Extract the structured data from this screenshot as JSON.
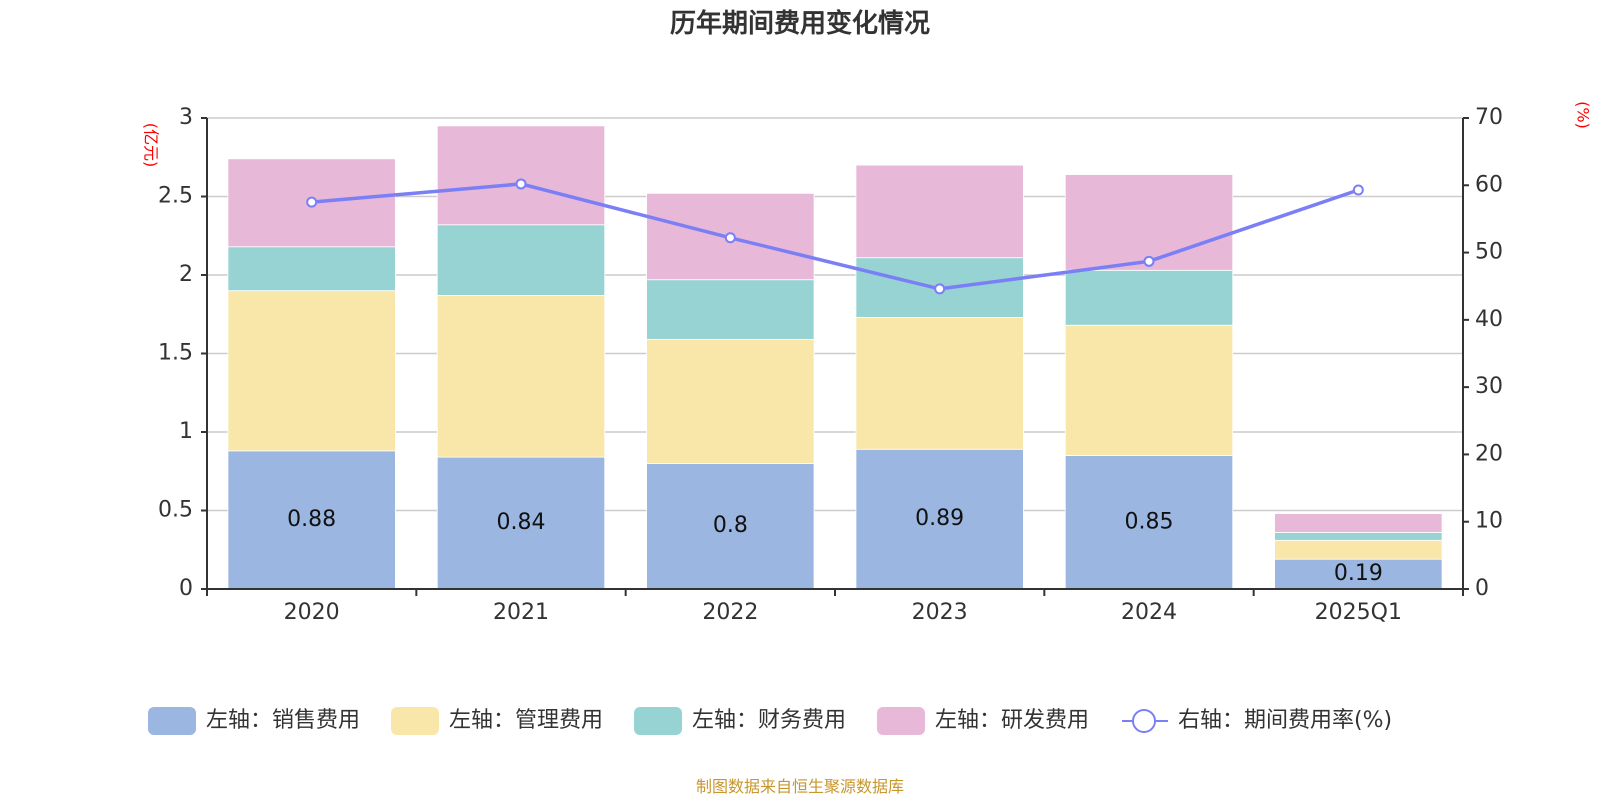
{
  "chart_data": {
    "type": "bar",
    "title": "历年期间费用变化情况",
    "categories": [
      "2020",
      "2021",
      "2022",
      "2023",
      "2024",
      "2025Q1"
    ],
    "stacked": true,
    "left_axis": {
      "unit_label": "(亿元)",
      "ylim": [
        0,
        3
      ],
      "ticks": [
        "0",
        "0.5",
        "1",
        "1.5",
        "2",
        "2.5",
        "3"
      ]
    },
    "right_axis": {
      "unit_label": "(%)",
      "ylim": [
        0,
        70
      ],
      "ticks": [
        "0",
        "10",
        "20",
        "30",
        "40",
        "50",
        "60",
        "70"
      ]
    },
    "grid": true,
    "legend_position": "bottom",
    "series": [
      {
        "name": "左轴：销售费用",
        "axis": "left",
        "type": "bar",
        "color": "#9bb7e1",
        "values": [
          0.88,
          0.84,
          0.8,
          0.89,
          0.85,
          0.19
        ],
        "data_labels": [
          "0.88",
          "0.84",
          "0.8",
          "0.89",
          "0.85",
          "0.19"
        ]
      },
      {
        "name": "左轴：管理费用",
        "axis": "left",
        "type": "bar",
        "color": "#f8e7a9",
        "values": [
          1.02,
          1.03,
          0.79,
          0.84,
          0.83,
          0.12
        ]
      },
      {
        "name": "左轴：财务费用",
        "axis": "left",
        "type": "bar",
        "color": "#97d3d3",
        "values": [
          0.28,
          0.45,
          0.38,
          0.38,
          0.35,
          0.05
        ]
      },
      {
        "name": "左轴：研发费用",
        "axis": "left",
        "type": "bar",
        "color": "#e7b8d7",
        "values": [
          0.56,
          0.63,
          0.55,
          0.59,
          0.61,
          0.12
        ]
      },
      {
        "name": "右轴：期间费用率(%)",
        "axis": "right",
        "type": "line",
        "color": "#7b7ff5",
        "values": [
          57.5,
          60.2,
          52.2,
          44.6,
          48.7,
          59.3
        ]
      }
    ],
    "source": "制图数据来自恒生聚源数据库"
  }
}
